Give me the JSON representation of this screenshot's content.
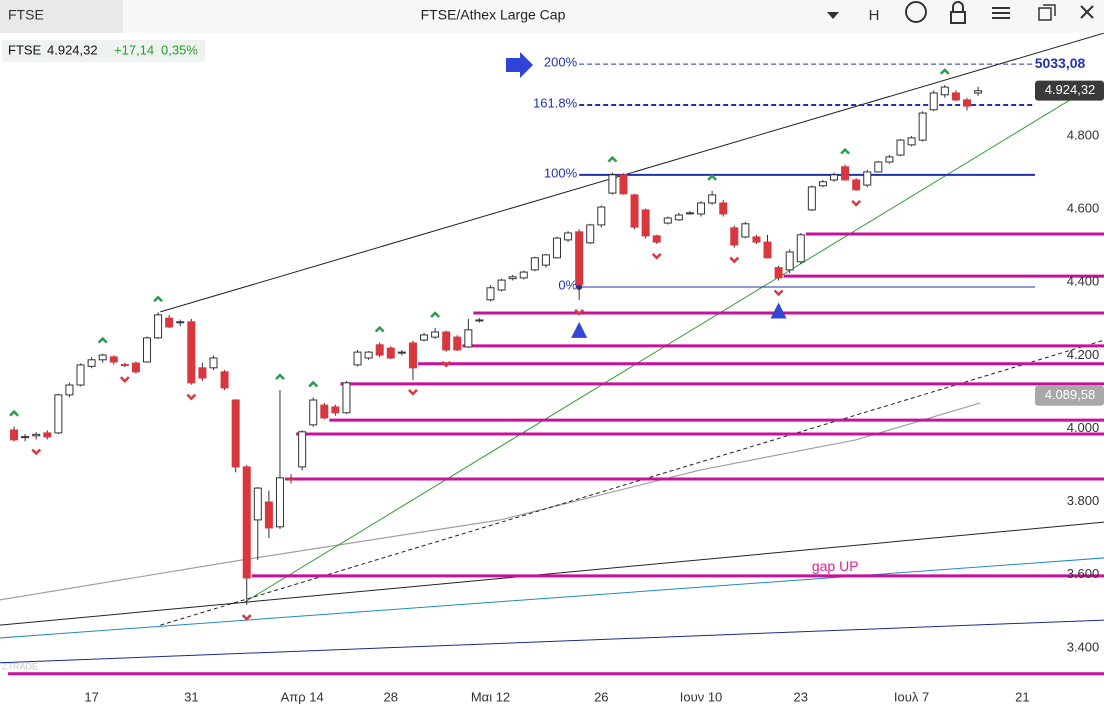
{
  "toolbar": {
    "tab": "FTSE",
    "title": "FTSE/Athex Large Cap",
    "mode": "H"
  },
  "quote": {
    "symbol": "FTSE",
    "last": "4.924,32",
    "change": "+17,14",
    "change_pct": "0,35%"
  },
  "watermark": "ZTRADE",
  "chart_data": {
    "type": "candlestick",
    "categories": [
      null,
      null,
      null,
      null,
      null,
      null,
      null,
      "17",
      null,
      null,
      null,
      null,
      null,
      null,
      null,
      null,
      "31",
      null,
      null,
      null,
      null,
      null,
      null,
      null,
      null,
      null,
      "Απρ 14",
      null,
      null,
      null,
      null,
      null,
      null,
      null,
      "28",
      null,
      null,
      null,
      null,
      null,
      null,
      null,
      null,
      "Μαι 12",
      null,
      null,
      null,
      null,
      null,
      null,
      null,
      null,
      null,
      "26",
      null,
      null,
      null,
      null,
      null,
      null,
      null,
      null,
      "Ιουν 10",
      null,
      null,
      null,
      null,
      null,
      null,
      null,
      null,
      "23",
      null,
      null,
      null,
      null,
      null,
      null,
      null,
      null,
      null,
      "Ιουλ 7",
      null,
      null,
      null,
      null,
      null,
      null,
      null,
      null,
      null,
      "21",
      null
    ],
    "open": [
      3996,
      3975,
      3980,
      3988,
      3988,
      4092,
      4119,
      4170,
      4188,
      4196,
      4175,
      4179,
      4182,
      4248,
      4302,
      4290,
      4292,
      4166,
      4166,
      4155,
      4078,
      3895,
      3750,
      3799,
      3731,
      3862,
      3895,
      4010,
      4064,
      4059,
      4043,
      4174,
      4193,
      4229,
      4220,
      4207,
      4234,
      4242,
      4250,
      4264,
      4250,
      4223,
      4295,
      4352,
      4379,
      4410,
      4412,
      4434,
      4447,
      4467,
      4516,
      4538,
      4508,
      4557,
      4644,
      4694,
      4639,
      4598,
      4527,
      4562,
      4571,
      4588,
      4587,
      4617,
      4617,
      4549,
      4524,
      4524,
      4510,
      4440,
      4434,
      4456,
      4598,
      4664,
      4680,
      4716,
      4680,
      4666,
      4702,
      4729,
      4748,
      4776,
      4789,
      4872,
      4913,
      4918,
      4899,
      4918,
      null,
      null,
      null,
      null,
      null
    ],
    "high": [
      4005,
      3985,
      3990,
      3995,
      4095,
      4125,
      4178,
      4195,
      4205,
      4200,
      4180,
      4183,
      4252,
      4318,
      4310,
      4298,
      4300,
      4180,
      4200,
      4160,
      4080,
      3900,
      3840,
      3830,
      4105,
      3875,
      3995,
      4085,
      4070,
      4065,
      4130,
      4215,
      4212,
      4235,
      4225,
      4215,
      4240,
      4262,
      4275,
      4268,
      4255,
      4300,
      4302,
      4392,
      4410,
      4420,
      4432,
      4470,
      4478,
      4525,
      4540,
      4545,
      4560,
      4610,
      4700,
      4698,
      4642,
      4602,
      4530,
      4580,
      4590,
      4595,
      4622,
      4650,
      4625,
      4555,
      4565,
      4530,
      4530,
      4445,
      4490,
      4535,
      4665,
      4680,
      4700,
      4722,
      4685,
      4708,
      4732,
      4748,
      4792,
      4800,
      4868,
      4925,
      4940,
      4925,
      4904,
      4935,
      null,
      null,
      null,
      null,
      null
    ],
    "low": [
      3965,
      3965,
      3970,
      3970,
      3985,
      4085,
      4115,
      4165,
      4180,
      4175,
      4168,
      4150,
      4180,
      4245,
      4275,
      4280,
      4120,
      4130,
      4160,
      4105,
      3880,
      3517,
      3640,
      3700,
      3725,
      3850,
      3885,
      4005,
      4025,
      4035,
      4040,
      4170,
      4188,
      4195,
      4190,
      4200,
      4133,
      4238,
      4245,
      4210,
      4212,
      4220,
      4290,
      4348,
      4375,
      4405,
      4408,
      4430,
      4440,
      4465,
      4510,
      4352,
      4505,
      4550,
      4640,
      4640,
      4545,
      4520,
      4505,
      4558,
      4568,
      4585,
      4580,
      4612,
      4580,
      4495,
      4520,
      4505,
      4465,
      4405,
      4425,
      4450,
      4595,
      4660,
      4675,
      4678,
      4650,
      4660,
      4700,
      4725,
      4745,
      4772,
      4785,
      4868,
      4905,
      4895,
      4870,
      4910,
      null,
      null,
      null,
      null,
      null
    ],
    "close": [
      3969,
      3978,
      3984,
      3977,
      4092,
      4119,
      4174,
      4188,
      4201,
      4182,
      4174,
      4155,
      4248,
      4311,
      4278,
      4292,
      4125,
      4138,
      4193,
      4111,
      3895,
      3591,
      3837,
      3728,
      3865,
      3859,
      3991,
      4078,
      4029,
      4043,
      4125,
      4209,
      4209,
      4201,
      4193,
      4209,
      4166,
      4256,
      4264,
      4215,
      4215,
      4270,
      4297,
      4385,
      4406,
      4415,
      4428,
      4467,
      4475,
      4521,
      4535,
      4393,
      4557,
      4606,
      4694,
      4642,
      4551,
      4527,
      4510,
      4576,
      4584,
      4590,
      4617,
      4639,
      4587,
      4502,
      4560,
      4510,
      4467,
      4412,
      4483,
      4530,
      4661,
      4675,
      4694,
      4680,
      4653,
      4702,
      4729,
      4743,
      4789,
      4795,
      4863,
      4918,
      4934,
      4899,
      4882,
      4924,
      null,
      null,
      null,
      null,
      null
    ],
    "up_color": "#ffffff",
    "down_color": "#d9363e",
    "ylim": [
      3312,
      5082
    ],
    "yticks": [
      {
        "value": 3400,
        "label": "3.400"
      },
      {
        "value": 3600,
        "label": "3.600"
      },
      {
        "value": 3800,
        "label": "3.800"
      },
      {
        "value": 4000,
        "label": "4.000"
      },
      {
        "value": 4200,
        "label": "4.200"
      },
      {
        "value": 4400,
        "label": "4.400"
      },
      {
        "value": 4600,
        "label": "4.600"
      },
      {
        "value": 4800,
        "label": "4.800"
      }
    ],
    "grid": false,
    "price_tags": [
      {
        "value": 4924.32,
        "label": "4.924,32",
        "color": "#3a3a3a"
      },
      {
        "value": 4089.58,
        "label": "4.089,58",
        "color": "#a8a8a8"
      }
    ],
    "support_lines": [
      {
        "value": 4532,
        "start": 72
      },
      {
        "value": 4417,
        "start": 70
      },
      {
        "value": 4316,
        "start": 42
      },
      {
        "value": 4226,
        "start": 41
      },
      {
        "value": 4177,
        "start": 37
      },
      {
        "value": 4122,
        "start": 30
      },
      {
        "value": 4023,
        "start": 29
      },
      {
        "value": 3985,
        "start": 26
      },
      {
        "value": 3862,
        "start": 25
      },
      {
        "value": 3597,
        "start": 22
      },
      {
        "value": 3329,
        "start": 0
      }
    ],
    "support_color": "#c8109b",
    "trendlines": [
      {
        "x": [
          13.2,
          98.4
        ],
        "y": [
          4319,
          5082
        ],
        "color": "#222222",
        "dashed": false
      },
      {
        "x": [
          20.7,
          95.3
        ],
        "y": [
          3523,
          4899
        ],
        "color": "#2e9e2e",
        "dashed": false
      },
      {
        "x": [
          -1.3,
          98.4
        ],
        "y": [
          3462,
          3744
        ],
        "color": "#222222",
        "dashed": false
      },
      {
        "x": [
          -1.3,
          98.4
        ],
        "y": [
          3427,
          3646
        ],
        "color": "#1e8ac8",
        "dashed": false
      },
      {
        "x": [
          -1.3,
          98.4
        ],
        "y": [
          3359,
          3476
        ],
        "color": "#1a2a8a",
        "dashed": false
      },
      {
        "x": [
          13.2,
          98.4
        ],
        "y": [
          3462,
          4242
        ],
        "color": "#222222",
        "dashed": true
      }
    ],
    "moving_average": {
      "x": [
        -1.3,
        20.7,
        43.9,
        62,
        76,
        87.2
      ],
      "y": [
        3531,
        3641,
        3750,
        3887,
        3969,
        4070
      ],
      "color": "#a0a0a0"
    },
    "fibonacci": {
      "start": 51,
      "color": "#2233aa",
      "levels": [
        {
          "value": 4387,
          "label": "0%",
          "dashed": false
        },
        {
          "value": 4694,
          "label": "100%",
          "dashed": false
        },
        {
          "value": 4885,
          "label": "161.8%",
          "dashed": true
        },
        {
          "value": 4997,
          "label": "200%",
          "dashed": true
        }
      ],
      "target_label": "5033,08"
    },
    "signals": {
      "up": [
        0,
        8,
        13,
        24,
        27,
        33,
        38,
        54,
        63,
        75,
        84
      ],
      "down": [
        2,
        10,
        16,
        21,
        36,
        39,
        51,
        58,
        65,
        69,
        76
      ],
      "markers": [
        51,
        69
      ]
    },
    "annotation": {
      "text": "gap UP",
      "x": 72,
      "y": 3620,
      "color": "#e0208f"
    }
  }
}
